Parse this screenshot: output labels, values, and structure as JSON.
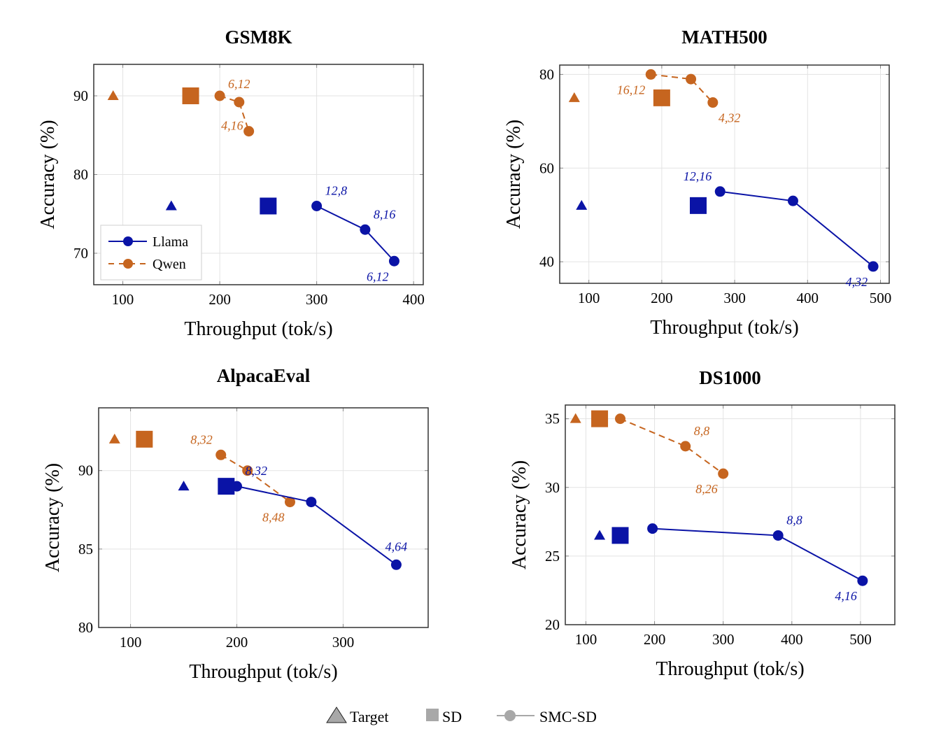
{
  "colors": {
    "Llama": "#0A13A6",
    "Qwen": "#C6651F",
    "legend_gray": "#A8A8A8"
  },
  "legend": {
    "Llama": "Llama",
    "Qwen": "Qwen",
    "Target": "Target",
    "SD": "SD",
    "SMC-SD": "SMC-SD"
  },
  "chart_data": [
    {
      "type": "scatter",
      "title": "GSM8K",
      "xlabel": "Throughput (tok/s)",
      "ylabel": "Accuracy (%)",
      "xlim": [
        70,
        410
      ],
      "ylim": [
        66,
        94
      ],
      "xticks": [
        100,
        200,
        300,
        400
      ],
      "yticks": [
        70,
        80,
        90
      ],
      "grid": true,
      "legend_position": "bottom-left",
      "series": [
        {
          "name": "Llama",
          "target": [
            150,
            76
          ],
          "sd": [
            250,
            76
          ],
          "smc": [
            [
              300,
              76
            ],
            [
              350,
              73
            ],
            [
              380,
              69
            ]
          ],
          "annotations": [
            {
              "text": "12,8",
              "at": 0,
              "pos": "above-right"
            },
            {
              "text": "8,16",
              "at": 1,
              "pos": "above-right"
            },
            {
              "text": "6,12",
              "at": 2,
              "pos": "below-left"
            }
          ]
        },
        {
          "name": "Qwen",
          "target": [
            90,
            90
          ],
          "sd": [
            170,
            90
          ],
          "smc": [
            [
              200,
              90
            ],
            [
              220,
              89.2
            ],
            [
              230,
              85.5
            ]
          ],
          "annotations": [
            {
              "text": "6,12",
              "at": 1,
              "pos": "above"
            },
            {
              "text": "4,16",
              "at": 2,
              "pos": "left"
            }
          ]
        }
      ]
    },
    {
      "type": "scatter",
      "title": "MATH500",
      "xlabel": "Throughput (tok/s)",
      "ylabel": "Accuracy (%)",
      "xlim": [
        60,
        512
      ],
      "ylim": [
        35.4,
        82
      ],
      "xticks": [
        100,
        200,
        300,
        400,
        500
      ],
      "yticks": [
        40,
        60,
        80
      ],
      "grid": true,
      "series": [
        {
          "name": "Llama",
          "target": [
            90,
            52
          ],
          "sd": [
            250,
            52
          ],
          "smc": [
            [
              280,
              55
            ],
            [
              380,
              53
            ],
            [
              490,
              39
            ]
          ],
          "annotations": [
            {
              "text": "12,16",
              "at": 0,
              "pos": "above-left"
            },
            {
              "text": "4,32",
              "at": 2,
              "pos": "below-left"
            }
          ]
        },
        {
          "name": "Qwen",
          "target": [
            80,
            75
          ],
          "sd": [
            200,
            75
          ],
          "smc": [
            [
              185,
              80
            ],
            [
              240,
              79
            ],
            [
              270,
              74
            ]
          ],
          "annotations": [
            {
              "text": "16,12",
              "at": 0,
              "pos": "below-left"
            },
            {
              "text": "4,32",
              "at": 2,
              "pos": "below-right"
            }
          ]
        }
      ]
    },
    {
      "type": "scatter",
      "title": "AlpacaEval",
      "xlabel": "Throughput (tok/s)",
      "ylabel": "Accuracy (%)",
      "xlim": [
        70,
        380
      ],
      "ylim": [
        80,
        94
      ],
      "xticks": [
        100,
        200,
        300
      ],
      "yticks": [
        80,
        85,
        90
      ],
      "grid": true,
      "series": [
        {
          "name": "Llama",
          "target": [
            150,
            89
          ],
          "sd": [
            190,
            89
          ],
          "smc": [
            [
              200,
              89
            ],
            [
              270,
              88
            ],
            [
              350,
              84
            ]
          ],
          "annotations": [
            {
              "text": "8,32",
              "at": 0,
              "pos": "above-right"
            },
            {
              "text": "4,64",
              "at": 2,
              "pos": "above"
            }
          ]
        },
        {
          "name": "Qwen",
          "target": [
            85,
            92
          ],
          "sd": [
            113,
            92
          ],
          "smc": [
            [
              185,
              91
            ],
            [
              210,
              90
            ],
            [
              250,
              88
            ]
          ],
          "annotations": [
            {
              "text": "8,32",
              "at": 0,
              "pos": "above-left"
            },
            {
              "text": "8,48",
              "at": 2,
              "pos": "below-left"
            }
          ]
        }
      ]
    },
    {
      "type": "scatter",
      "title": "DS1000",
      "xlabel": "Throughput (tok/s)",
      "ylabel": "Accuracy (%)",
      "xlim": [
        70,
        550
      ],
      "ylim": [
        20,
        36
      ],
      "xticks": [
        100,
        200,
        300,
        400,
        500
      ],
      "yticks": [
        20,
        25,
        30,
        35
      ],
      "grid": true,
      "series": [
        {
          "name": "Llama",
          "target": [
            120,
            26.5
          ],
          "sd": [
            150,
            26.5
          ],
          "smc": [
            [
              197,
              27
            ],
            [
              380,
              26.5
            ],
            [
              503,
              23.2
            ]
          ],
          "annotations": [
            {
              "text": "8,8",
              "at": 1,
              "pos": "above-right"
            },
            {
              "text": "4,16",
              "at": 2,
              "pos": "below-left"
            }
          ]
        },
        {
          "name": "Qwen",
          "target": [
            85,
            35
          ],
          "sd": [
            120,
            35
          ],
          "smc": [
            [
              150,
              35
            ],
            [
              245,
              33
            ],
            [
              300,
              31
            ]
          ],
          "annotations": [
            {
              "text": "8,8",
              "at": 1,
              "pos": "above-right"
            },
            {
              "text": "8,26",
              "at": 2,
              "pos": "below-left"
            }
          ]
        }
      ]
    }
  ]
}
